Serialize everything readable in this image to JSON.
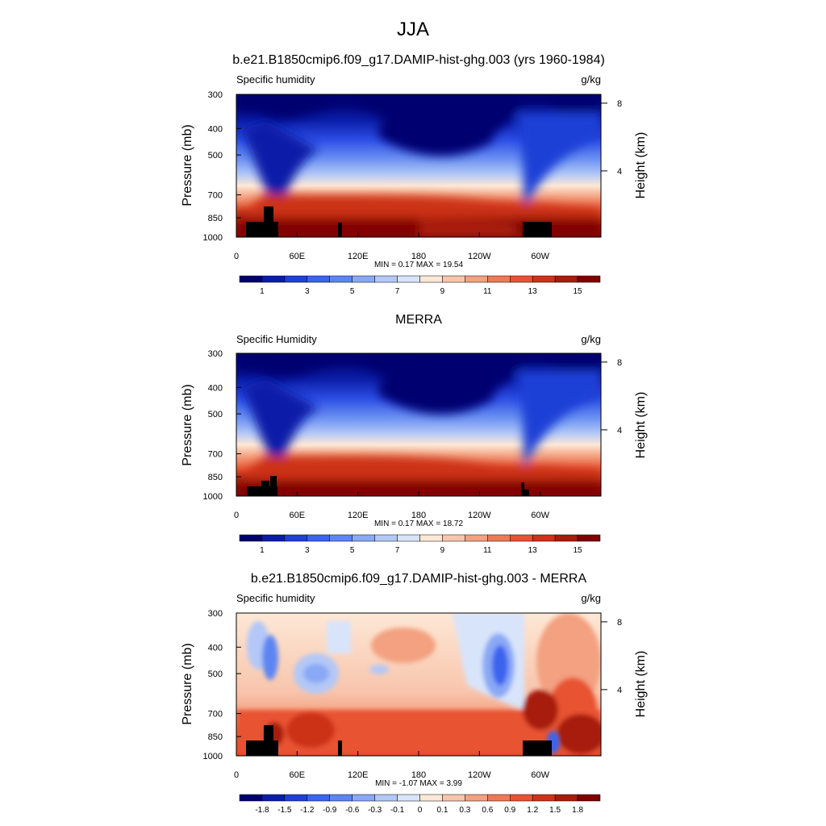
{
  "main_title": "JJA",
  "chart_data": [
    {
      "type": "heatmap",
      "title": "b.e21.B1850cmip6.f09_g17.DAMIP-hist-ghg.003 (yrs 1960-1984)",
      "left_label": "Specific humidity",
      "units": "g/kg",
      "ylabel": "Pressure (mb)",
      "y2label": "Height (km)",
      "x_ticks": [
        "0",
        "60E",
        "120E",
        "180",
        "120W",
        "60W"
      ],
      "y_ticks": [
        "300",
        "400",
        "500",
        "700",
        "850",
        "1000"
      ],
      "y2_ticks": [
        "8",
        "4"
      ],
      "stats": "MIN =   0.17  MAX =  19.54",
      "min": 0.17,
      "max": 19.54,
      "colorbar_labels": [
        "1",
        "3",
        "5",
        "7",
        "9",
        "11",
        "13",
        "15"
      ],
      "colorbar_colors": [
        "#00006f",
        "#0a1da8",
        "#1f3fd6",
        "#3a63ee",
        "#5d85f2",
        "#89a8f5",
        "#b3c8f7",
        "#d8e4fa",
        "#fde8d6",
        "#f8c5ac",
        "#f3a180",
        "#ee7a55",
        "#e85232",
        "#cc3318",
        "#a81c0a",
        "#800000"
      ]
    },
    {
      "type": "heatmap",
      "title": "MERRA",
      "left_label": "Specific Humidity",
      "units": "g/kg",
      "ylabel": "Pressure (mb)",
      "y2label": "Height (km)",
      "x_ticks": [
        "0",
        "60E",
        "120E",
        "180",
        "120W",
        "60W"
      ],
      "y_ticks": [
        "300",
        "400",
        "500",
        "700",
        "850",
        "1000"
      ],
      "y2_ticks": [
        "8",
        "4"
      ],
      "stats": "MIN =   0.17  MAX =  18.72",
      "min": 0.17,
      "max": 18.72,
      "colorbar_labels": [
        "1",
        "3",
        "5",
        "7",
        "9",
        "11",
        "13",
        "15"
      ],
      "colorbar_colors": [
        "#00006f",
        "#0a1da8",
        "#1f3fd6",
        "#3a63ee",
        "#5d85f2",
        "#89a8f5",
        "#b3c8f7",
        "#d8e4fa",
        "#fde8d6",
        "#f8c5ac",
        "#f3a180",
        "#ee7a55",
        "#e85232",
        "#cc3318",
        "#a81c0a",
        "#800000"
      ]
    },
    {
      "type": "heatmap",
      "title": "b.e21.B1850cmip6.f09_g17.DAMIP-hist-ghg.003 - MERRA",
      "left_label": "Specific humidity",
      "units": "g/kg",
      "ylabel": "Pressure (mb)",
      "y2label": "Height (km)",
      "x_ticks": [
        "0",
        "60E",
        "120E",
        "180",
        "120W",
        "60W"
      ],
      "y_ticks": [
        "300",
        "400",
        "500",
        "700",
        "850",
        "1000"
      ],
      "y2_ticks": [
        "8",
        "4"
      ],
      "stats": "MIN =  -1.07  MAX =   3.99",
      "min": -1.07,
      "max": 3.99,
      "colorbar_labels": [
        "-1.8",
        "-1.5",
        "-1.2",
        "-0.9",
        "-0.6",
        "-0.3",
        "-0.1",
        "0",
        "0.1",
        "0.3",
        "0.6",
        "0.9",
        "1.2",
        "1.5",
        "1.8"
      ],
      "colorbar_colors": [
        "#00006f",
        "#0a1da8",
        "#1f3fd6",
        "#3a63ee",
        "#5d85f2",
        "#89a8f5",
        "#b3c8f7",
        "#d8e4fa",
        "#fde8d6",
        "#f8c5ac",
        "#f3a180",
        "#ee7a55",
        "#e85232",
        "#cc3318",
        "#a81c0a",
        "#800000"
      ]
    }
  ]
}
